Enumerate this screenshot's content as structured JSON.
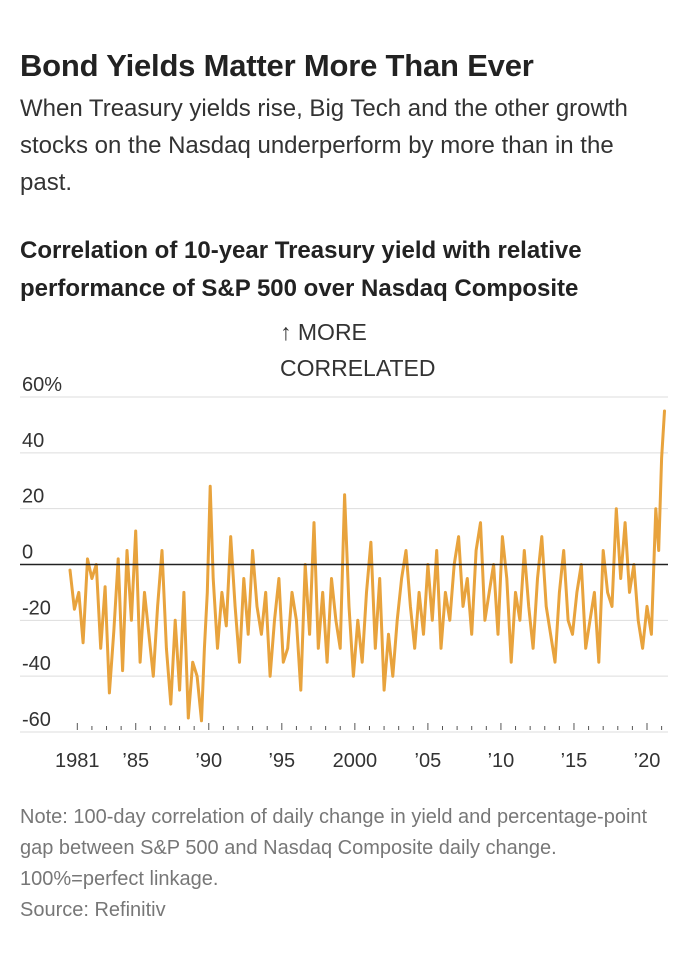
{
  "headline": "Bond Yields Matter More Than Ever",
  "dek": "When Treasury yields rise, Big Tech and the other growth stocks on the Nasdaq underperform by more than in the past.",
  "note": "Note: 100-day correlation of daily change in yield and percentage-point gap between S&P 500 and Nasdaq Composite daily change. 100%=perfect linkage.",
  "source": "Source: Refinitiv",
  "colors": {
    "line": "#e8a33d",
    "zero": "#222222",
    "grid": "#dddddd",
    "axis_text": "#333333",
    "muted": "#777777"
  },
  "chart_data": {
    "type": "line",
    "title": "Correlation of 10-year Treasury yield with relative performance of S&P 500 over Nasdaq Composite",
    "annotation": [
      "↑ MORE",
      "CORRELATED"
    ],
    "ylim": [
      -60,
      60
    ],
    "xlim": [
      1980.5,
      2021.3
    ],
    "y_ticks": [
      60,
      40,
      20,
      0,
      -20,
      -40,
      -60
    ],
    "y_tick_labels": [
      "60%",
      "40",
      "20",
      "0",
      "-20",
      "-40",
      "-60"
    ],
    "x_tick_labels": [
      {
        "x": 1981,
        "label": "1981"
      },
      {
        "x": 1985,
        "label": "’85"
      },
      {
        "x": 1990,
        "label": "’90"
      },
      {
        "x": 1995,
        "label": "’95"
      },
      {
        "x": 2000,
        "label": "2000"
      },
      {
        "x": 2005,
        "label": "’05"
      },
      {
        "x": 2010,
        "label": "’10"
      },
      {
        "x": 2015,
        "label": "’15"
      },
      {
        "x": 2020,
        "label": "’20"
      }
    ],
    "grid": true,
    "legend": "none",
    "series": [
      {
        "x": [
          1980.5,
          1980.8,
          1981.1,
          1981.4,
          1981.7,
          1982.0,
          1982.3,
          1982.6,
          1982.9,
          1983.2,
          1983.5,
          1983.8,
          1984.1,
          1984.4,
          1984.7,
          1985.0,
          1985.3,
          1985.6,
          1985.9,
          1986.2,
          1986.5,
          1986.8,
          1987.1,
          1987.4,
          1987.7,
          1988.0,
          1988.3,
          1988.6,
          1988.9,
          1989.2,
          1989.5,
          1989.7,
          1989.9,
          1990.1,
          1990.3,
          1990.6,
          1990.9,
          1991.2,
          1991.5,
          1991.8,
          1992.1,
          1992.4,
          1992.7,
          1993.0,
          1993.3,
          1993.6,
          1993.9,
          1994.2,
          1994.5,
          1994.8,
          1995.1,
          1995.4,
          1995.7,
          1996.0,
          1996.3,
          1996.6,
          1996.9,
          1997.2,
          1997.5,
          1997.8,
          1998.1,
          1998.4,
          1998.7,
          1999.0,
          1999.3,
          1999.6,
          1999.9,
          2000.2,
          2000.5,
          2000.8,
          2001.1,
          2001.4,
          2001.7,
          2002.0,
          2002.3,
          2002.6,
          2002.9,
          2003.2,
          2003.5,
          2003.8,
          2004.1,
          2004.4,
          2004.7,
          2005.0,
          2005.3,
          2005.6,
          2005.9,
          2006.2,
          2006.5,
          2006.8,
          2007.1,
          2007.4,
          2007.7,
          2008.0,
          2008.3,
          2008.6,
          2008.9,
          2009.2,
          2009.5,
          2009.8,
          2010.1,
          2010.4,
          2010.7,
          2011.0,
          2011.3,
          2011.6,
          2011.9,
          2012.2,
          2012.5,
          2012.8,
          2013.1,
          2013.4,
          2013.7,
          2014.0,
          2014.3,
          2014.6,
          2014.9,
          2015.2,
          2015.5,
          2015.8,
          2016.1,
          2016.4,
          2016.7,
          2017.0,
          2017.3,
          2017.6,
          2017.9,
          2018.2,
          2018.5,
          2018.8,
          2019.1,
          2019.4,
          2019.7,
          2020.0,
          2020.3,
          2020.6,
          2020.8,
          2021.0,
          2021.2
        ],
        "values": [
          -2,
          -16,
          -10,
          -28,
          2,
          -5,
          0,
          -30,
          -8,
          -46,
          -24,
          2,
          -38,
          5,
          -20,
          12,
          -35,
          -10,
          -25,
          -40,
          -15,
          5,
          -30,
          -50,
          -20,
          -45,
          -10,
          -55,
          -35,
          -40,
          -56,
          -30,
          -10,
          28,
          -5,
          -30,
          -10,
          -22,
          10,
          -15,
          -35,
          -5,
          -25,
          5,
          -15,
          -25,
          -10,
          -40,
          -20,
          -5,
          -35,
          -30,
          -10,
          -20,
          -45,
          0,
          -25,
          15,
          -30,
          -10,
          -35,
          -5,
          -20,
          -30,
          25,
          -15,
          -40,
          -20,
          -35,
          -10,
          8,
          -30,
          -5,
          -45,
          -25,
          -40,
          -20,
          -5,
          5,
          -15,
          -30,
          -10,
          -25,
          0,
          -20,
          5,
          -30,
          -10,
          -20,
          0,
          10,
          -15,
          -5,
          -25,
          5,
          15,
          -20,
          -10,
          0,
          -25,
          10,
          -5,
          -35,
          -10,
          -20,
          5,
          -15,
          -30,
          -5,
          10,
          -15,
          -25,
          -35,
          -10,
          5,
          -20,
          -25,
          -10,
          0,
          -30,
          -20,
          -10,
          -35,
          5,
          -10,
          -15,
          20,
          -5,
          15,
          -10,
          0,
          -20,
          -30,
          -15,
          -25,
          20,
          5,
          38,
          55
        ]
      }
    ]
  }
}
